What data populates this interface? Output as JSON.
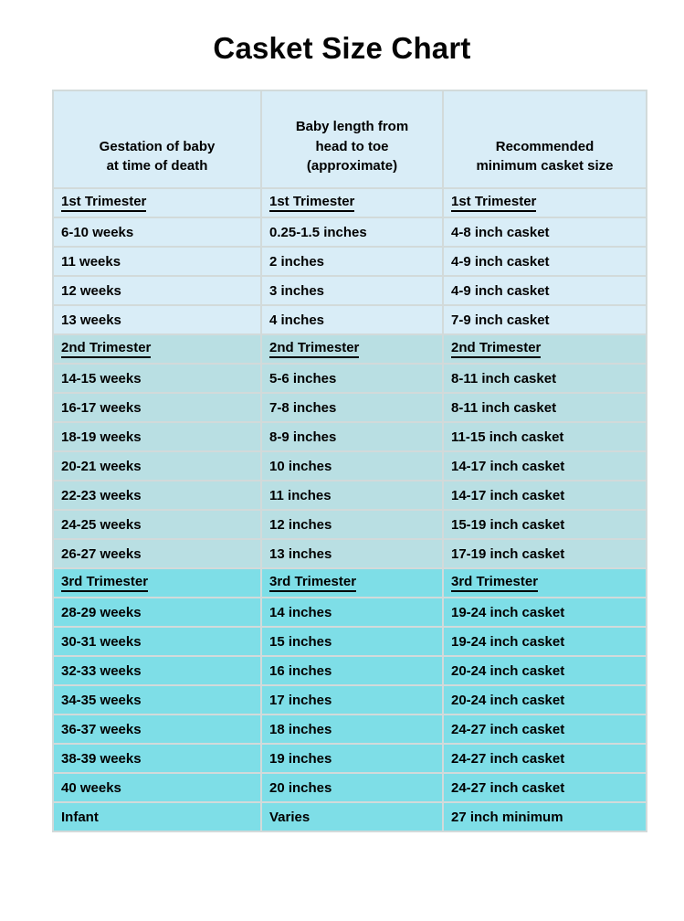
{
  "title": "Casket Size Chart",
  "table": {
    "header_bg": "#d9edf7",
    "grid_color": "#d2dada",
    "columns": [
      "Gestation of baby\nat time of death",
      "Baby length from\nhead to toe\n(approximate)",
      "Recommended\nminimum casket size"
    ],
    "sections": [
      {
        "label": "1st Trimester",
        "color": "#d9edf7",
        "rows": [
          [
            "6-10 weeks",
            "0.25-1.5 inches",
            "4-8 inch casket"
          ],
          [
            "11 weeks",
            "2 inches",
            "4-9 inch casket"
          ],
          [
            "12 weeks",
            "3 inches",
            "4-9 inch casket"
          ],
          [
            "13 weeks",
            "4 inches",
            "7-9 inch casket"
          ]
        ]
      },
      {
        "label": "2nd Trimester",
        "color": "#b9dfe3",
        "rows": [
          [
            "14-15 weeks",
            "5-6 inches",
            "8-11 inch casket"
          ],
          [
            "16-17 weeks",
            "7-8 inches",
            "8-11 inch casket"
          ],
          [
            "18-19 weeks",
            "8-9 inches",
            "11-15 inch casket"
          ],
          [
            "20-21 weeks",
            "10 inches",
            "14-17 inch casket"
          ],
          [
            "22-23 weeks",
            "11 inches",
            "14-17 inch casket"
          ],
          [
            "24-25 weeks",
            "12 inches",
            "15-19 inch casket"
          ],
          [
            "26-27 weeks",
            "13 inches",
            "17-19 inch casket"
          ]
        ]
      },
      {
        "label": "3rd Trimester",
        "color": "#7edee7",
        "rows": [
          [
            "28-29 weeks",
            "14 inches",
            "19-24 inch casket"
          ],
          [
            "30-31 weeks",
            "15 inches",
            "19-24 inch casket"
          ],
          [
            "32-33 weeks",
            "16 inches",
            "20-24 inch casket"
          ],
          [
            "34-35 weeks",
            "17 inches",
            "20-24 inch casket"
          ],
          [
            "36-37 weeks",
            "18 inches",
            "24-27 inch casket"
          ],
          [
            "38-39 weeks",
            "19 inches",
            "24-27 inch casket"
          ],
          [
            "40 weeks",
            "20 inches",
            "24-27 inch casket"
          ],
          [
            "Infant",
            "Varies",
            "27 inch minimum"
          ]
        ]
      }
    ]
  },
  "chart_data": {
    "type": "table",
    "title": "Casket Size Chart",
    "columns": [
      "Gestation of baby at time of death",
      "Baby length from head to toe (approximate)",
      "Recommended minimum casket size"
    ],
    "rows": [
      [
        "1st Trimester",
        "1st Trimester",
        "1st Trimester"
      ],
      [
        "6-10 weeks",
        "0.25-1.5 inches",
        "4-8 inch casket"
      ],
      [
        "11 weeks",
        "2 inches",
        "4-9 inch casket"
      ],
      [
        "12 weeks",
        "3 inches",
        "4-9 inch casket"
      ],
      [
        "13 weeks",
        "4 inches",
        "7-9 inch casket"
      ],
      [
        "2nd Trimester",
        "2nd Trimester",
        "2nd Trimester"
      ],
      [
        "14-15 weeks",
        "5-6 inches",
        "8-11 inch casket"
      ],
      [
        "16-17 weeks",
        "7-8 inches",
        "8-11 inch casket"
      ],
      [
        "18-19 weeks",
        "8-9 inches",
        "11-15 inch casket"
      ],
      [
        "20-21 weeks",
        "10 inches",
        "14-17 inch casket"
      ],
      [
        "22-23 weeks",
        "11 inches",
        "14-17 inch casket"
      ],
      [
        "24-25 weeks",
        "12 inches",
        "15-19 inch casket"
      ],
      [
        "26-27 weeks",
        "13 inches",
        "17-19 inch casket"
      ],
      [
        "3rd Trimester",
        "3rd Trimester",
        "3rd Trimester"
      ],
      [
        "28-29 weeks",
        "14 inches",
        "19-24 inch casket"
      ],
      [
        "30-31 weeks",
        "15 inches",
        "19-24 inch casket"
      ],
      [
        "32-33 weeks",
        "16 inches",
        "20-24 inch casket"
      ],
      [
        "34-35 weeks",
        "17 inches",
        "20-24 inch casket"
      ],
      [
        "36-37 weeks",
        "18 inches",
        "24-27 inch casket"
      ],
      [
        "38-39 weeks",
        "19 inches",
        "24-27 inch casket"
      ],
      [
        "40 weeks",
        "20 inches",
        "24-27 inch casket"
      ],
      [
        "Infant",
        "Varies",
        "27 inch minimum"
      ]
    ],
    "section_colors": {
      "1st Trimester": "#d9edf7",
      "2nd Trimester": "#b9dfe3",
      "3rd Trimester": "#7edee7"
    }
  }
}
